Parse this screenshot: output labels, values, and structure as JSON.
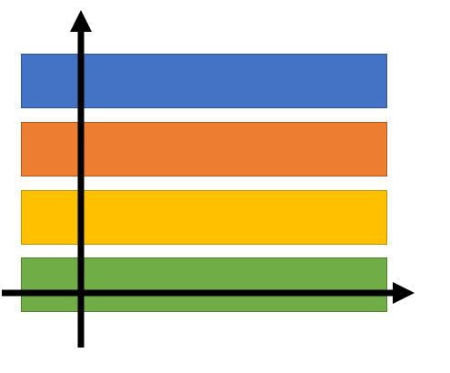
{
  "diagram": {
    "bands": [
      {
        "id": "blue",
        "fill": "#4472C4",
        "border": "#2F5597"
      },
      {
        "id": "orange",
        "fill": "#ED7D31",
        "border": "#AE5A21"
      },
      {
        "id": "yellow",
        "fill": "#FFC000",
        "border": "#BF9000"
      },
      {
        "id": "green",
        "fill": "#70AD47",
        "border": "#507E32"
      }
    ],
    "axis_color": "#000000"
  }
}
